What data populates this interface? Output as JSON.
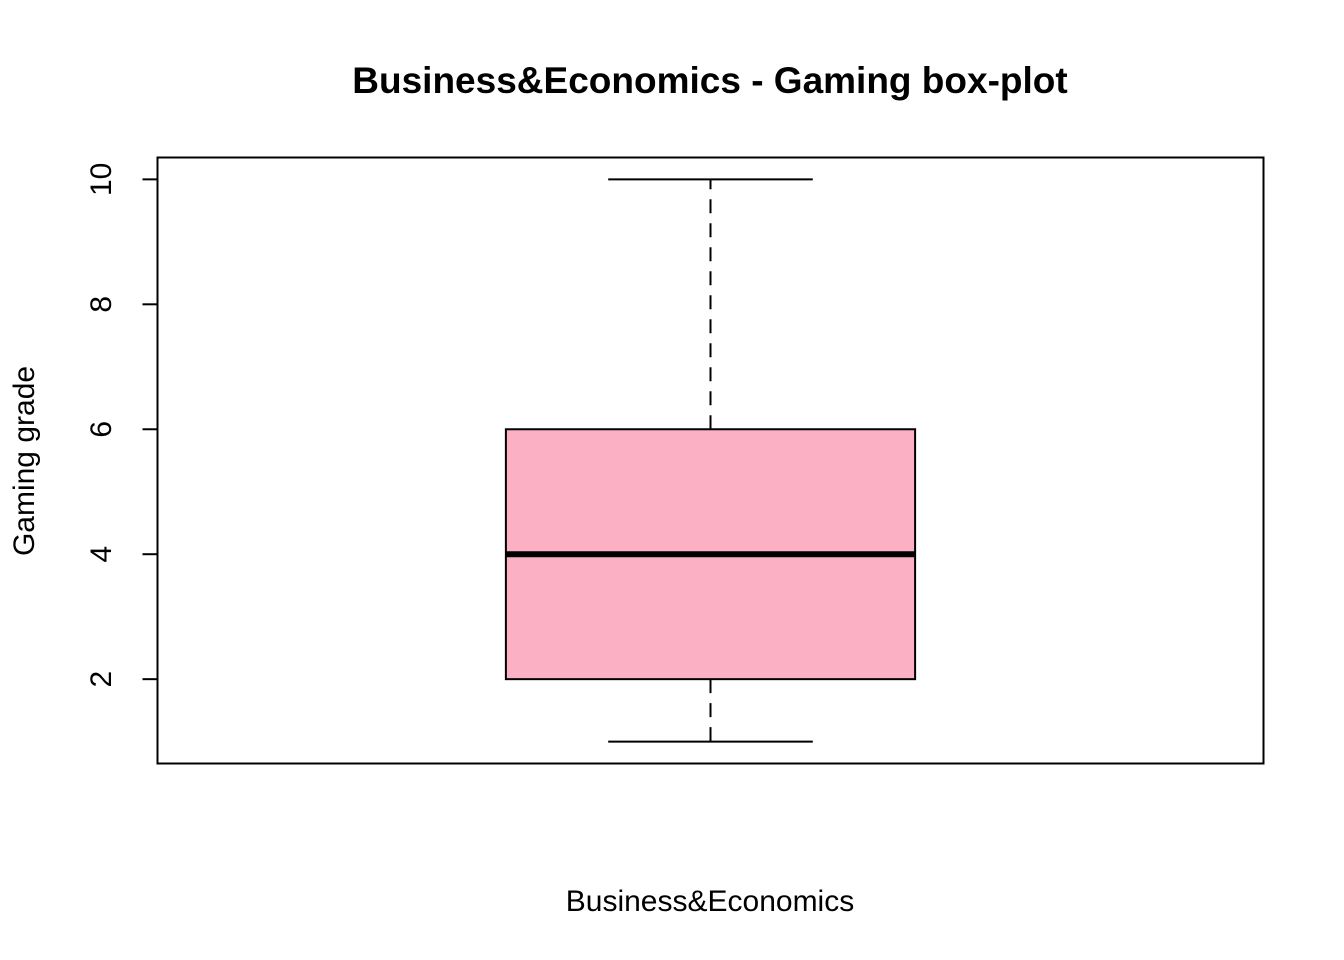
{
  "chart_data": {
    "type": "box",
    "title": "Business&Economics - Gaming box-plot",
    "xlabel": "Business&Economics",
    "ylabel": "Gaming grade",
    "ylim": [
      0.65,
      10.35
    ],
    "yticks": [
      2,
      4,
      6,
      8,
      10
    ],
    "ytick_labels": [
      "2",
      "4",
      "6",
      "8",
      "10"
    ],
    "categories": [
      "Business&Economics"
    ],
    "boxes": [
      {
        "category": "Business&Economics",
        "min": 1,
        "q1": 2,
        "median": 4,
        "q3": 6,
        "max": 10
      }
    ],
    "grid": false,
    "legend": "none",
    "box_fill": "#fcb0c3",
    "line_color": "#000000"
  }
}
